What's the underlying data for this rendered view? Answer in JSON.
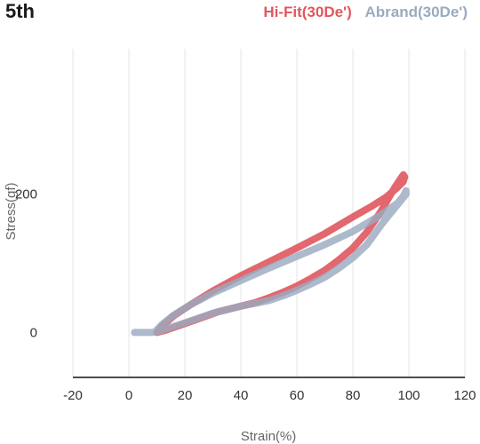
{
  "chart_data": {
    "type": "line",
    "title": "5th",
    "xlabel": "Strain(%)",
    "ylabel": "Stress(gf)",
    "xlim": [
      -20,
      120
    ],
    "ylim": [
      -65,
      410
    ],
    "xticks": [
      -20,
      0,
      20,
      40,
      60,
      80,
      100,
      120
    ],
    "xtick_labels": [
      "-20",
      "0",
      "20",
      "40",
      "60",
      "80",
      "100",
      "120"
    ],
    "yticks": [
      0,
      200
    ],
    "ytick_labels": [
      "0",
      "200"
    ],
    "grid": "vertical",
    "legend_position": "top-right",
    "series": [
      {
        "name": "Hi-Fit(30De')",
        "color": "#e0575e",
        "x": [
          10,
          13,
          18,
          25,
          32,
          40,
          45,
          50,
          55,
          60,
          65,
          70,
          75,
          80,
          85,
          90,
          93,
          95,
          97,
          98,
          98.5,
          98,
          96,
          92,
          87,
          80,
          70,
          60,
          50,
          40,
          30,
          22,
          16,
          12,
          10
        ],
        "y": [
          0,
          3,
          10,
          20,
          30,
          38,
          43,
          50,
          58,
          67,
          78,
          90,
          105,
          122,
          145,
          175,
          196,
          210,
          222,
          228,
          225,
          218,
          210,
          196,
          183,
          167,
          143,
          122,
          102,
          82,
          60,
          40,
          24,
          10,
          0
        ]
      },
      {
        "name": "Abrand(30De')",
        "color": "#9aabc0",
        "x": [
          2,
          8,
          11,
          14,
          20,
          30,
          40,
          50,
          55,
          60,
          65,
          70,
          75,
          80,
          85,
          90,
          93,
          96,
          98,
          99,
          99,
          98,
          96,
          90,
          85,
          80,
          70,
          60,
          50,
          40,
          30,
          22,
          16,
          12,
          10
        ],
        "y": [
          0,
          0,
          2,
          6,
          14,
          28,
          38,
          46,
          53,
          61,
          70,
          80,
          93,
          108,
          127,
          155,
          170,
          185,
          195,
          200,
          205,
          197,
          187,
          170,
          158,
          146,
          127,
          110,
          93,
          75,
          57,
          40,
          25,
          12,
          4
        ]
      }
    ]
  }
}
